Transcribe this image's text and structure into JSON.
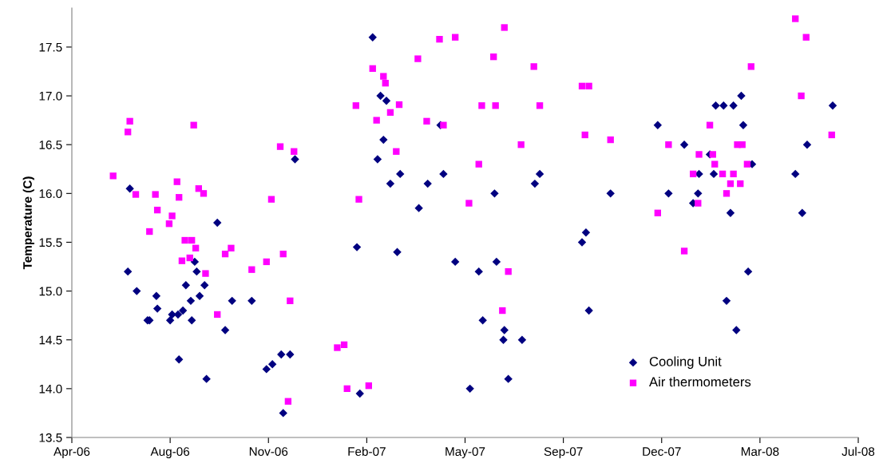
{
  "chart_data": {
    "type": "scatter",
    "ylabel": "Temperature (C)",
    "xlim": [
      "2006-04-24",
      "2008-07-02"
    ],
    "xticks": [
      {
        "value": "2006-04-24",
        "label": "Apr-06"
      },
      {
        "value": "2006-08-02",
        "label": "Aug-06"
      },
      {
        "value": "2006-11-10",
        "label": "Nov-06"
      },
      {
        "value": "2007-02-18",
        "label": "Feb-07"
      },
      {
        "value": "2007-05-29",
        "label": "May-07"
      },
      {
        "value": "2007-09-06",
        "label": "Sep-07"
      },
      {
        "value": "2007-12-15",
        "label": "Dec-07"
      },
      {
        "value": "2008-03-24",
        "label": "Mar-08"
      },
      {
        "value": "2008-07-02",
        "label": "Jul-08"
      }
    ],
    "ylim": [
      13.5,
      17.9
    ],
    "yticks": [
      13.5,
      {
        "value": 14,
        "label": "14.0"
      },
      14.5,
      {
        "value": 15,
        "label": "15.0"
      },
      15.5,
      {
        "value": 16,
        "label": "16.0"
      },
      16.5,
      {
        "value": 17,
        "label": "17.0"
      },
      17.5
    ],
    "grid": false,
    "legend": "bottom right",
    "series": [
      {
        "name": "Cooling Unit",
        "color": "#000080",
        "marker": "diamond",
        "x": [
          "2006-06-20",
          "2006-06-22",
          "2006-06-29",
          "2006-07-10",
          "2006-07-12",
          "2006-07-19",
          "2006-07-20",
          "2006-08-02",
          "2006-08-04",
          "2006-08-10",
          "2006-08-11",
          "2006-08-15",
          "2006-08-18",
          "2006-08-23",
          "2006-08-24",
          "2006-08-27",
          "2006-08-29",
          "2006-09-01",
          "2006-09-06",
          "2006-09-08",
          "2006-09-19",
          "2006-09-27",
          "2006-10-04",
          "2006-10-24",
          "2006-11-08",
          "2006-11-14",
          "2006-11-23",
          "2006-11-25",
          "2006-12-02",
          "2006-12-07",
          "2007-02-08",
          "2007-02-11",
          "2007-02-24",
          "2007-03-01",
          "2007-03-04",
          "2007-03-07",
          "2007-03-10",
          "2007-03-14",
          "2007-03-21",
          "2007-03-24",
          "2007-04-12",
          "2007-04-21",
          "2007-05-04",
          "2007-05-07",
          "2007-05-19",
          "2007-06-03",
          "2007-06-12",
          "2007-06-16",
          "2007-06-28",
          "2007-06-30",
          "2007-07-07",
          "2007-07-08",
          "2007-07-12",
          "2007-07-26",
          "2007-08-08",
          "2007-08-13",
          "2007-09-25",
          "2007-09-29",
          "2007-10-02",
          "2007-10-24",
          "2007-12-11",
          "2007-12-22",
          "2008-01-07",
          "2008-01-16",
          "2008-01-21",
          "2008-01-22",
          "2008-02-02",
          "2008-02-06",
          "2008-02-08",
          "2008-02-16",
          "2008-02-19",
          "2008-02-23",
          "2008-02-26",
          "2008-02-29",
          "2008-03-05",
          "2008-03-07",
          "2008-03-12",
          "2008-03-16",
          "2008-04-29",
          "2008-05-06",
          "2008-05-11",
          "2008-06-06"
        ],
        "values": [
          15.2,
          16.05,
          15.0,
          14.7,
          14.7,
          14.95,
          14.82,
          14.7,
          14.76,
          14.76,
          14.3,
          14.8,
          15.06,
          14.9,
          14.7,
          15.3,
          15.2,
          14.95,
          15.06,
          14.1,
          15.7,
          14.6,
          14.9,
          14.9,
          14.2,
          14.25,
          14.35,
          13.75,
          14.35,
          16.35,
          15.45,
          13.95,
          17.6,
          16.35,
          17.0,
          16.55,
          16.95,
          16.1,
          15.4,
          16.2,
          15.85,
          16.1,
          16.7,
          16.2,
          15.3,
          14.0,
          15.2,
          14.7,
          16.0,
          15.3,
          14.5,
          14.6,
          14.1,
          14.5,
          16.1,
          16.2,
          15.5,
          15.6,
          14.8,
          16.0,
          16.7,
          16.0,
          16.5,
          15.9,
          16.0,
          16.2,
          16.4,
          16.2,
          16.9,
          16.9,
          14.9,
          15.8,
          16.9,
          14.6,
          17.0,
          16.7,
          15.2,
          16.3,
          16.2,
          15.8,
          16.5,
          16.9
        ]
      },
      {
        "name": "Air thermometers",
        "color": "#ff00ff",
        "marker": "square",
        "x": [
          "2006-06-05",
          "2006-06-20",
          "2006-06-22",
          "2006-06-28",
          "2006-07-12",
          "2006-07-18",
          "2006-07-20",
          "2006-08-01",
          "2006-08-04",
          "2006-08-09",
          "2006-08-11",
          "2006-08-14",
          "2006-08-17",
          "2006-08-22",
          "2006-08-24",
          "2006-08-26",
          "2006-08-28",
          "2006-08-31",
          "2006-09-05",
          "2006-09-07",
          "2006-09-19",
          "2006-09-27",
          "2006-10-03",
          "2006-10-24",
          "2006-11-08",
          "2006-11-13",
          "2006-11-22",
          "2006-11-25",
          "2006-11-30",
          "2006-12-02",
          "2006-12-06",
          "2007-01-19",
          "2007-01-26",
          "2007-01-29",
          "2007-02-07",
          "2007-02-10",
          "2007-02-20",
          "2007-02-24",
          "2007-02-28",
          "2007-03-07",
          "2007-03-09",
          "2007-03-14",
          "2007-03-20",
          "2007-03-23",
          "2007-04-11",
          "2007-04-20",
          "2007-05-03",
          "2007-05-07",
          "2007-05-19",
          "2007-06-02",
          "2007-06-12",
          "2007-06-15",
          "2007-06-27",
          "2007-06-29",
          "2007-07-06",
          "2007-07-08",
          "2007-07-12",
          "2007-07-25",
          "2007-08-07",
          "2007-08-13",
          "2007-09-25",
          "2007-09-28",
          "2007-10-02",
          "2007-10-24",
          "2007-12-11",
          "2007-12-22",
          "2008-01-07",
          "2008-01-16",
          "2008-01-21",
          "2008-01-22",
          "2008-02-02",
          "2008-02-05",
          "2008-02-07",
          "2008-02-15",
          "2008-02-19",
          "2008-02-23",
          "2008-02-26",
          "2008-03-01",
          "2008-03-04",
          "2008-03-06",
          "2008-03-11",
          "2008-03-15",
          "2008-04-29",
          "2008-05-05",
          "2008-05-10",
          "2008-06-05"
        ],
        "values": [
          16.18,
          16.63,
          16.74,
          15.99,
          15.61,
          15.99,
          15.83,
          15.69,
          15.77,
          16.12,
          15.96,
          15.31,
          15.52,
          15.34,
          15.52,
          16.7,
          15.44,
          16.05,
          16.0,
          15.18,
          14.76,
          15.38,
          15.44,
          15.22,
          15.3,
          15.94,
          16.48,
          15.38,
          13.87,
          14.9,
          16.43,
          14.42,
          14.45,
          14.0,
          16.9,
          15.94,
          14.03,
          17.28,
          16.75,
          17.2,
          17.13,
          16.83,
          16.43,
          16.91,
          17.38,
          16.74,
          17.58,
          16.7,
          17.6,
          15.9,
          16.3,
          16.9,
          17.4,
          16.9,
          14.8,
          17.7,
          15.2,
          16.5,
          17.3,
          16.9,
          17.1,
          16.6,
          17.1,
          16.55,
          15.8,
          16.5,
          15.41,
          16.2,
          15.9,
          16.4,
          16.7,
          16.4,
          16.3,
          16.2,
          16.0,
          16.1,
          16.2,
          16.5,
          16.1,
          16.5,
          16.3,
          17.3,
          17.79,
          17.0,
          17.6,
          16.6
        ]
      }
    ]
  }
}
